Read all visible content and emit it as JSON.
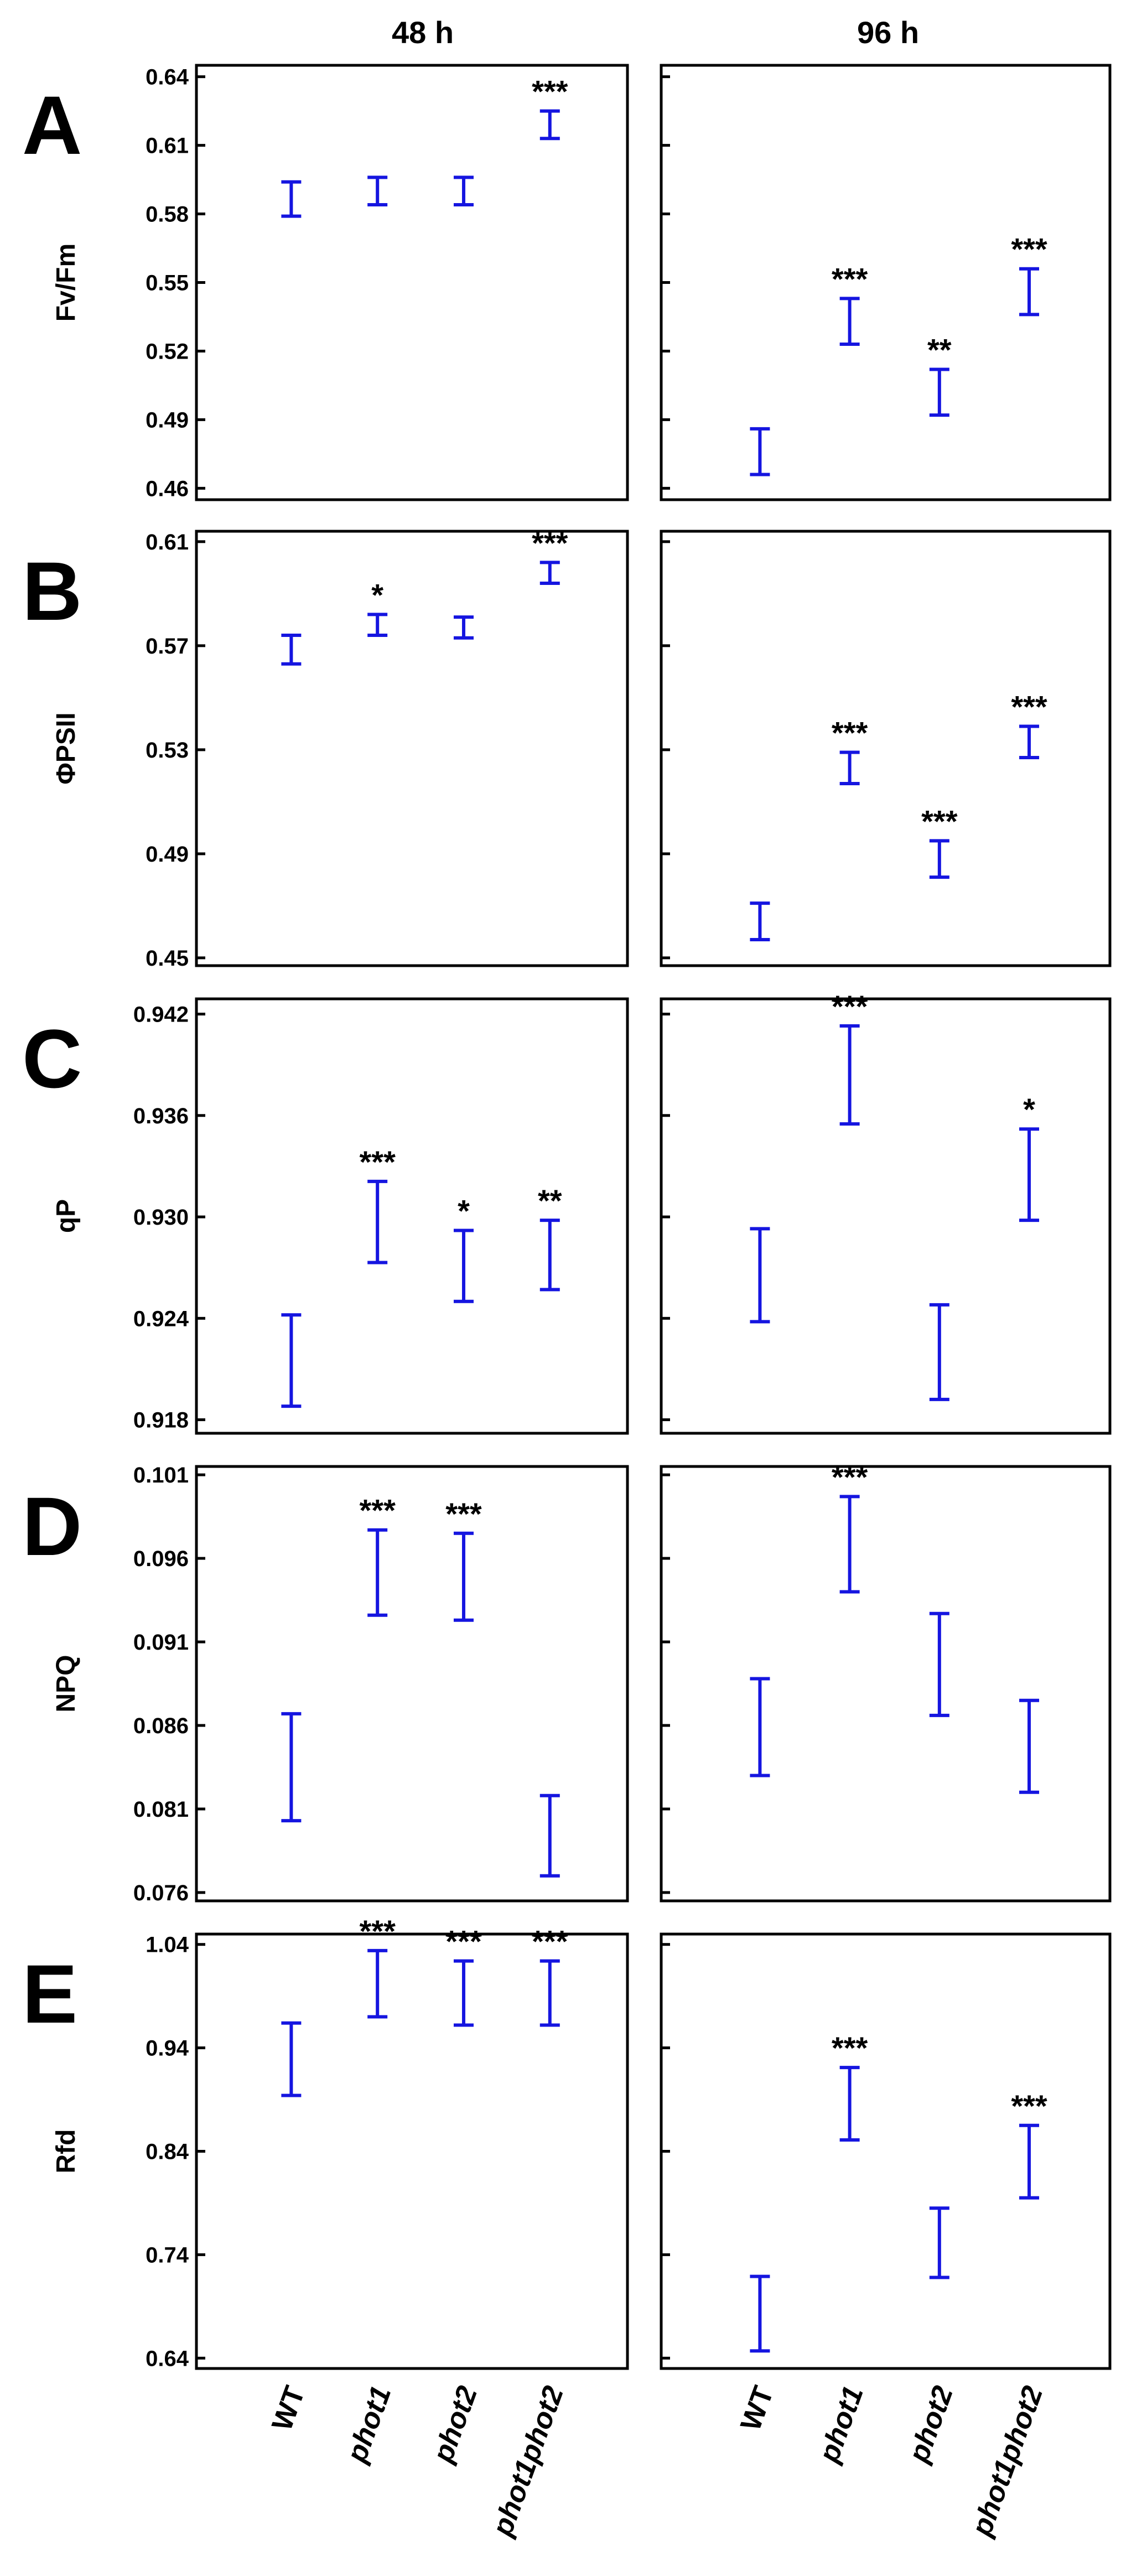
{
  "column_headers": [
    "48 h",
    "96 h"
  ],
  "categories": [
    "WT",
    "phot1",
    "phot2",
    "phot1phot2"
  ],
  "colors": {
    "errorbar": "#1515e0",
    "axis": "#000000",
    "text": "#000000"
  },
  "chart_data": [
    {
      "type": "errorbar",
      "panel": "A",
      "ylabel": "Fv/Fm",
      "time": "48 h",
      "categories": [
        "WT",
        "phot1",
        "phot2",
        "phot1phot2"
      ],
      "ylim": [
        0.455,
        0.645
      ],
      "yticks": [
        0.46,
        0.49,
        0.52,
        0.55,
        0.58,
        0.61,
        0.64
      ],
      "ytick_labels": [
        "0.46",
        "0.49",
        "0.52",
        "0.55",
        "0.58",
        "0.61",
        "0.64"
      ],
      "lower": [
        0.579,
        0.584,
        0.584,
        0.613
      ],
      "upper": [
        0.594,
        0.596,
        0.596,
        0.625
      ],
      "significance": [
        "",
        "",
        "",
        "***"
      ]
    },
    {
      "type": "errorbar",
      "panel": "A",
      "ylabel": "Fv/Fm",
      "time": "96 h",
      "categories": [
        "WT",
        "phot1",
        "phot2",
        "phot1phot2"
      ],
      "ylim": [
        0.455,
        0.645
      ],
      "yticks": [
        0.46,
        0.49,
        0.52,
        0.55,
        0.58,
        0.61,
        0.64
      ],
      "lower": [
        0.466,
        0.523,
        0.492,
        0.536
      ],
      "upper": [
        0.486,
        0.543,
        0.512,
        0.556
      ],
      "significance": [
        "",
        "***",
        "**",
        "***"
      ]
    },
    {
      "type": "errorbar",
      "panel": "B",
      "ylabel": "ΦPSII",
      "time": "48 h",
      "categories": [
        "WT",
        "phot1",
        "phot2",
        "phot1phot2"
      ],
      "ylim": [
        0.447,
        0.614
      ],
      "yticks": [
        0.45,
        0.49,
        0.53,
        0.57,
        0.61
      ],
      "ytick_labels": [
        "0.45",
        "0.49",
        "0.53",
        "0.57",
        "0.61"
      ],
      "lower": [
        0.563,
        0.574,
        0.573,
        0.594
      ],
      "upper": [
        0.574,
        0.582,
        0.581,
        0.602
      ],
      "significance": [
        "",
        "*",
        "",
        "***"
      ]
    },
    {
      "type": "errorbar",
      "panel": "B",
      "ylabel": "ΦPSII",
      "time": "96 h",
      "categories": [
        "WT",
        "phot1",
        "phot2",
        "phot1phot2"
      ],
      "ylim": [
        0.447,
        0.614
      ],
      "yticks": [
        0.45,
        0.49,
        0.53,
        0.57,
        0.61
      ],
      "lower": [
        0.457,
        0.517,
        0.481,
        0.527
      ],
      "upper": [
        0.471,
        0.529,
        0.495,
        0.539
      ],
      "significance": [
        "",
        "***",
        "***",
        "***"
      ]
    },
    {
      "type": "errorbar",
      "panel": "C",
      "ylabel": "qP",
      "time": "48 h",
      "categories": [
        "WT",
        "phot1",
        "phot2",
        "phot1phot2"
      ],
      "ylim": [
        0.9172,
        0.9429
      ],
      "yticks": [
        0.918,
        0.924,
        0.93,
        0.936,
        0.942
      ],
      "ytick_labels": [
        "0.918",
        "0.924",
        "0.930",
        "0.936",
        "0.942"
      ],
      "lower": [
        0.9188,
        0.9273,
        0.925,
        0.9257
      ],
      "upper": [
        0.9242,
        0.9321,
        0.9292,
        0.9298
      ],
      "significance": [
        "",
        "***",
        "*",
        "**"
      ]
    },
    {
      "type": "errorbar",
      "panel": "C",
      "ylabel": "qP",
      "time": "96 h",
      "categories": [
        "WT",
        "phot1",
        "phot2",
        "phot1phot2"
      ],
      "ylim": [
        0.9172,
        0.9429
      ],
      "yticks": [
        0.918,
        0.924,
        0.93,
        0.936,
        0.942
      ],
      "lower": [
        0.9238,
        0.9355,
        0.9192,
        0.9298
      ],
      "upper": [
        0.9293,
        0.9413,
        0.9248,
        0.9352
      ],
      "significance": [
        "",
        "***",
        "",
        "*"
      ]
    },
    {
      "type": "errorbar",
      "panel": "D",
      "ylabel": "NPQ",
      "time": "48 h",
      "categories": [
        "WT",
        "phot1",
        "phot2",
        "phot1phot2"
      ],
      "ylim": [
        0.0755,
        0.1015
      ],
      "yticks": [
        0.076,
        0.081,
        0.086,
        0.091,
        0.096,
        0.101
      ],
      "ytick_labels": [
        "0.076",
        "0.081",
        "0.086",
        "0.091",
        "0.096",
        "0.101"
      ],
      "lower": [
        0.0803,
        0.0926,
        0.0923,
        0.077
      ],
      "upper": [
        0.0867,
        0.0977,
        0.0975,
        0.0818
      ],
      "significance": [
        "",
        "***",
        "***",
        ""
      ]
    },
    {
      "type": "errorbar",
      "panel": "D",
      "ylabel": "NPQ",
      "time": "96 h",
      "categories": [
        "WT",
        "phot1",
        "phot2",
        "phot1phot2"
      ],
      "ylim": [
        0.0755,
        0.1015
      ],
      "yticks": [
        0.076,
        0.081,
        0.086,
        0.091,
        0.096,
        0.101
      ],
      "lower": [
        0.083,
        0.094,
        0.0866,
        0.082
      ],
      "upper": [
        0.0888,
        0.0997,
        0.0927,
        0.0875
      ],
      "significance": [
        "",
        "***",
        "",
        ""
      ]
    },
    {
      "type": "errorbar",
      "panel": "E",
      "ylabel": "Rfd",
      "time": "48 h",
      "categories": [
        "WT",
        "phot1",
        "phot2",
        "phot1phot2"
      ],
      "ylim": [
        0.63,
        1.05
      ],
      "yticks": [
        0.64,
        0.74,
        0.84,
        0.94,
        1.04
      ],
      "ytick_labels": [
        "0.64",
        "0.74",
        "0.84",
        "0.94",
        "1.04"
      ],
      "lower": [
        0.894,
        0.97,
        0.962,
        0.962
      ],
      "upper": [
        0.964,
        1.034,
        1.024,
        1.024
      ],
      "significance": [
        "",
        "***",
        "***",
        "***"
      ]
    },
    {
      "type": "errorbar",
      "panel": "E",
      "ylabel": "Rfd",
      "time": "96 h",
      "categories": [
        "WT",
        "phot1",
        "phot2",
        "phot1phot2"
      ],
      "ylim": [
        0.63,
        1.05
      ],
      "yticks": [
        0.64,
        0.74,
        0.84,
        0.94,
        1.04
      ],
      "lower": [
        0.647,
        0.851,
        0.718,
        0.795
      ],
      "upper": [
        0.719,
        0.921,
        0.785,
        0.865
      ],
      "significance": [
        "",
        "***",
        "",
        "***"
      ]
    }
  ]
}
